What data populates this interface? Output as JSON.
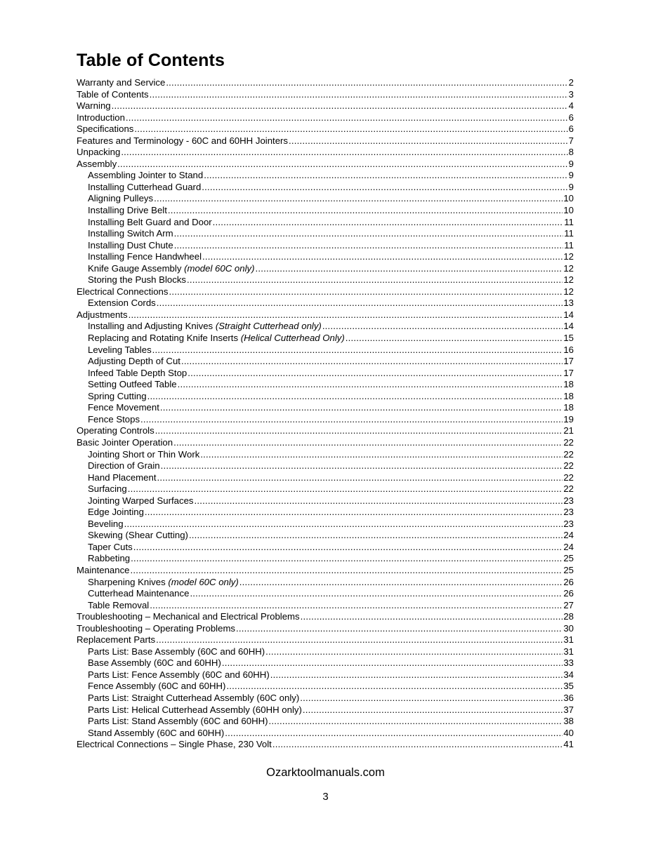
{
  "title": "Table of Contents",
  "entries": [
    {
      "label": "Warranty and Service",
      "page": "2",
      "level": 0
    },
    {
      "label": "Table of Contents",
      "page": "3",
      "level": 0
    },
    {
      "label": "Warning",
      "page": "4",
      "level": 0
    },
    {
      "label": "Introduction ",
      "page": "6",
      "level": 0
    },
    {
      "label": "Specifications ",
      "page": "6",
      "level": 0
    },
    {
      "label": "Features and Terminology - 60C and 60HH Jointers",
      "page": "7",
      "level": 0
    },
    {
      "label": "Unpacking ",
      "page": "8",
      "level": 0
    },
    {
      "label": "Assembly",
      "page": "9",
      "level": 0
    },
    {
      "label": "Assembling Jointer to Stand",
      "page": "9",
      "level": 1
    },
    {
      "label": "Installing Cutterhead Guard ",
      "page": "9",
      "level": 1
    },
    {
      "label": "Aligning Pulleys",
      "page": "10",
      "level": 1
    },
    {
      "label": "Installing Drive Belt",
      "page": "10",
      "level": 1
    },
    {
      "label": "Installing Belt Guard and Door ",
      "page": "11",
      "level": 1
    },
    {
      "label": "Installing Switch Arm ",
      "page": "11",
      "level": 1
    },
    {
      "label": "Installing Dust Chute ",
      "page": "11",
      "level": 1
    },
    {
      "label": "Installing Fence Handwheel ",
      "page": "12",
      "level": 1
    },
    {
      "label": "Knife Gauge Assembly ",
      "note": "(model 60C only) ",
      "page": "12",
      "level": 1
    },
    {
      "label": "Storing the Push Blocks ",
      "page": "12",
      "level": 1
    },
    {
      "label": "Electrical Connections",
      "page": "12",
      "level": 0
    },
    {
      "label": "Extension Cords",
      "page": "13",
      "level": 1
    },
    {
      "label": "Adjustments ",
      "page": "14",
      "level": 0
    },
    {
      "label": "Installing and Adjusting Knives ",
      "note": "(Straight Cutterhead only) ",
      "page": "14",
      "level": 1
    },
    {
      "label": "Replacing and Rotating Knife Inserts ",
      "note": "(Helical Cutterhead Only)",
      "page": "15",
      "level": 1
    },
    {
      "label": "Leveling Tables ",
      "page": "16",
      "level": 1
    },
    {
      "label": "Adjusting Depth of Cut ",
      "page": "17",
      "level": 1
    },
    {
      "label": "Infeed Table Depth Stop ",
      "page": "17",
      "level": 1
    },
    {
      "label": "Setting Outfeed Table ",
      "page": "18",
      "level": 1
    },
    {
      "label": "Spring Cutting",
      "page": "18",
      "level": 1
    },
    {
      "label": "Fence Movement",
      "page": "18",
      "level": 1
    },
    {
      "label": "Fence Stops ",
      "page": "19",
      "level": 1
    },
    {
      "label": "Operating Controls",
      "page": "21",
      "level": 0
    },
    {
      "label": "Basic Jointer Operation",
      "page": "22",
      "level": 0
    },
    {
      "label": "Jointing Short or Thin Work",
      "page": "22",
      "level": 1
    },
    {
      "label": "Direction of Grain ",
      "page": "22",
      "level": 1
    },
    {
      "label": "Hand Placement",
      "page": "22",
      "level": 1
    },
    {
      "label": "Surfacing ",
      "page": "22",
      "level": 1
    },
    {
      "label": "Jointing Warped Surfaces ",
      "page": "23",
      "level": 1
    },
    {
      "label": "Edge Jointing",
      "page": "23",
      "level": 1
    },
    {
      "label": "Beveling",
      "page": "23",
      "level": 1
    },
    {
      "label": "Skewing (Shear Cutting) ",
      "page": "24",
      "level": 1
    },
    {
      "label": "Taper Cuts",
      "page": "24",
      "level": 1
    },
    {
      "label": "Rabbeting ",
      "page": "25",
      "level": 1
    },
    {
      "label": "Maintenance",
      "page": "25",
      "level": 0
    },
    {
      "label": "Sharpening Knives ",
      "note": "(model 60C only)",
      "page": "26",
      "level": 1
    },
    {
      "label": "Cutterhead Maintenance ",
      "page": "26",
      "level": 1
    },
    {
      "label": "Table Removal ",
      "page": "27",
      "level": 1
    },
    {
      "label": "Troubleshooting – Mechanical and Electrical Problems ",
      "page": "28",
      "level": 0
    },
    {
      "label": "Troubleshooting – Operating Problems ",
      "page": "30",
      "level": 0
    },
    {
      "label": "Replacement Parts",
      "page": "31",
      "level": 0
    },
    {
      "label": "Parts List: Base Assembly (60C and 60HH) ",
      "page": "31",
      "level": 1
    },
    {
      "label": "Base Assembly (60C and 60HH) ",
      "page": "33",
      "level": 1
    },
    {
      "label": "Parts List: Fence Assembly (60C and 60HH)",
      "page": "34",
      "level": 1
    },
    {
      "label": "Fence Assembly (60C and 60HH)",
      "page": "35",
      "level": 1
    },
    {
      "label": "Parts List: Straight Cutterhead Assembly (60C only) ",
      "page": "36",
      "level": 1
    },
    {
      "label": "Parts List: Helical Cutterhead Assembly (60HH only) ",
      "page": "37",
      "level": 1
    },
    {
      "label": "Parts List: Stand Assembly (60C and 60HH) ",
      "page": "38",
      "level": 1
    },
    {
      "label": "Stand Assembly (60C and 60HH) ",
      "page": "40",
      "level": 1
    },
    {
      "label": "Electrical Connections – Single Phase, 230 Volt ",
      "page": "41",
      "level": 0
    }
  ],
  "footer": "Ozarktoolmanuals.com",
  "page_number": "3"
}
